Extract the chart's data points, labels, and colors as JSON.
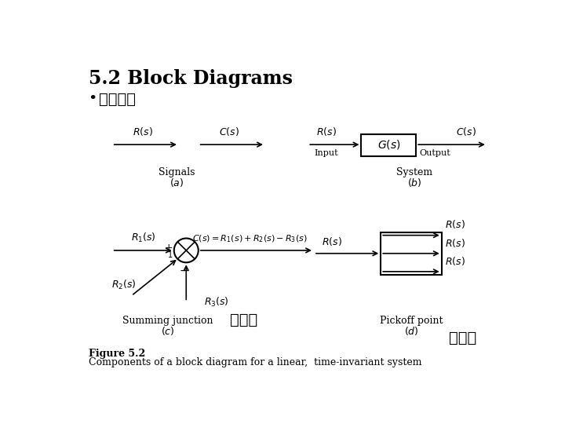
{
  "title": "5.2 Block Diagrams",
  "bullet": "符號介紹",
  "figure_label": "Figure 5.2",
  "figure_caption": "Components of a block diagram for a linear,  time-invariant system",
  "chinese_c": "加法器",
  "chinese_d": "捨取點",
  "bg_color": "#ffffff",
  "line_color": "#000000",
  "text_color": "#000000"
}
